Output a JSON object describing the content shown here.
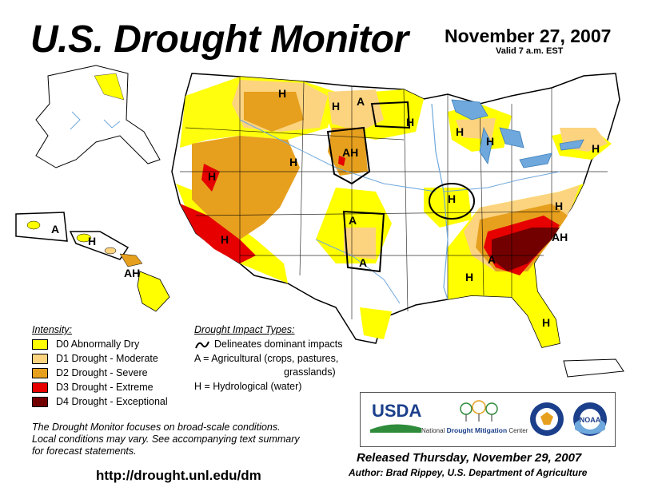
{
  "header": {
    "title": "U.S. Drought Monitor",
    "date": "November 27, 2007",
    "valid": "Valid 7 a.m. EST"
  },
  "legend": {
    "intensity_heading": "Intensity:",
    "items": [
      {
        "label": "D0 Abnormally Dry",
        "color": "#ffff00"
      },
      {
        "label": "D1 Drought - Moderate",
        "color": "#fcd37f"
      },
      {
        "label": "D2 Drought - Severe",
        "color": "#e6a01e"
      },
      {
        "label": "D3 Drought - Extreme",
        "color": "#e60000"
      },
      {
        "label": "D4 Drought - Exceptional",
        "color": "#730000"
      }
    ]
  },
  "impacts": {
    "heading": "Drought Impact Types:",
    "line1": "Delineates dominant impacts",
    "line2": "A = Agricultural (crops, pastures,",
    "line3": "grasslands)",
    "line4": "H = Hydrological (water)"
  },
  "map_labels": {
    "h": "H",
    "a": "A",
    "ah": "AH"
  },
  "note": {
    "line1": "The Drought Monitor focuses on broad-scale conditions.",
    "line2": "Local conditions may vary.  See accompanying text summary",
    "line3": "for forecast statements."
  },
  "footer": {
    "url": "http://drought.unl.edu/dm",
    "released": "Released Thursday, November 29, 2007",
    "author": "Author: Brad Rippey, U.S. Department of Agriculture"
  },
  "logos": {
    "usda": "USDA",
    "ndmc_prefix": "National",
    "ndmc_main": "Drought Mitigation",
    "ndmc_suffix": "Center",
    "noaa": "NOAA"
  },
  "colors": {
    "d0": "#ffff00",
    "d1": "#fcd37f",
    "d2": "#e6a01e",
    "d3": "#e60000",
    "d4": "#730000",
    "water": "#6fa8dc",
    "usda_blue": "#1b3f8b",
    "usda_green": "#2e8b3a"
  }
}
